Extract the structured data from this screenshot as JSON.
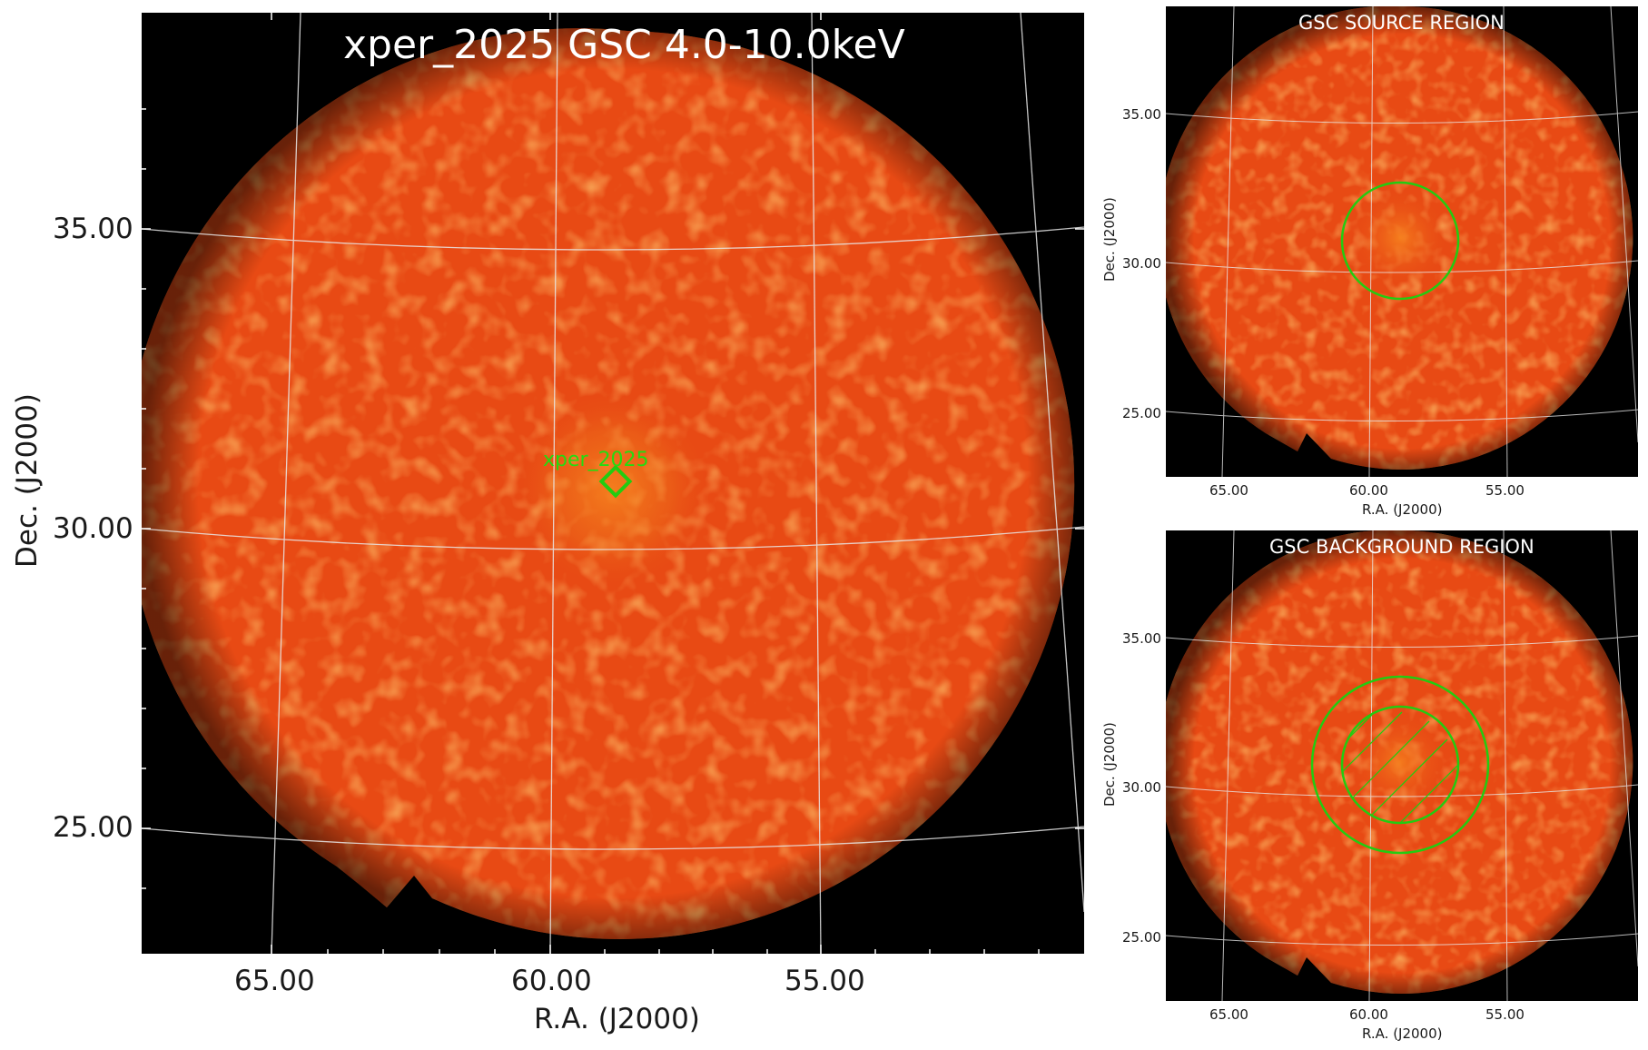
{
  "main": {
    "title": "xper_2025 GSC 4.0-10.0keV",
    "source_label": "xper_2025",
    "xlabel": "R.A. (J2000)",
    "ylabel": "Dec. (J2000)",
    "xticks": [
      "65.00",
      "60.00",
      "55.00"
    ],
    "yticks": [
      "35.00",
      "30.00",
      "25.00"
    ]
  },
  "source_panel": {
    "title": "GSC SOURCE REGION",
    "xlabel": "R.A. (J2000)",
    "ylabel": "Dec. (J2000)",
    "xticks": [
      "65.00",
      "60.00",
      "55.00"
    ],
    "yticks": [
      "35.00",
      "30.00",
      "25.00"
    ]
  },
  "background_panel": {
    "title": "GSC BACKGROUND REGION",
    "xlabel": "R.A. (J2000)",
    "ylabel": "Dec. (J2000)",
    "xticks": [
      "65.00",
      "60.00",
      "55.00"
    ],
    "yticks": [
      "35.00",
      "30.00",
      "25.00"
    ]
  },
  "colors": {
    "field": "#e84a14",
    "field_edge": "#d33a0e",
    "source_glow": "#f7861f",
    "background": "#000000",
    "grid": "#e8e8e8",
    "region": "#22cc11",
    "title_text": "#ffffff"
  }
}
